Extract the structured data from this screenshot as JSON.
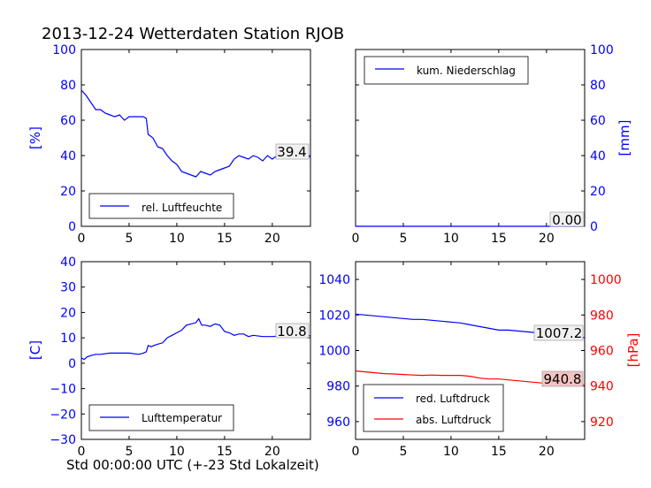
{
  "figure": {
    "title": "2013-12-24 Wetterdaten Station RJOB",
    "xlabel": "Std 00:00:00 UTC (+-23 Std Lokalzeit)"
  },
  "colors": {
    "primary": "#0000ff",
    "secondary": "#ff0000",
    "annotation_highlight": "#f4c2c2",
    "annotation_plain": "#f0f0f0"
  },
  "chart_data": [
    {
      "id": "humidity",
      "type": "line",
      "xlim": [
        0,
        24
      ],
      "xticks": [
        "0",
        "5",
        "10",
        "15",
        "20"
      ],
      "ylim": [
        0,
        100
      ],
      "yticks": [
        "0",
        "20",
        "40",
        "60",
        "80",
        "100"
      ],
      "ylabel": "[%]",
      "legend": {
        "position": "lower-left",
        "entries": [
          "rel. Luftfeuchte"
        ]
      },
      "annotation": "39.4",
      "series": [
        {
          "name": "rel. Luftfeuchte",
          "color": "#0000ff",
          "x": [
            0,
            0.5,
            1,
            1.5,
            2,
            2.5,
            3,
            3.5,
            4,
            4.5,
            5,
            5.5,
            6,
            6.5,
            6.8,
            7,
            7.5,
            8,
            8.5,
            9,
            9.5,
            10,
            10.5,
            11,
            11.5,
            12,
            12.5,
            13,
            13.5,
            14,
            14.5,
            15,
            15.5,
            16,
            16.5,
            17,
            17.5,
            18,
            18.5,
            19,
            19.5,
            20,
            20.5,
            21,
            21.5,
            22,
            22.5,
            23,
            23.5,
            24
          ],
          "y": [
            77,
            74,
            70,
            66,
            66,
            64,
            63,
            62,
            63,
            60,
            62,
            62,
            62,
            62,
            61,
            52,
            50,
            45,
            44,
            40,
            37,
            35,
            31,
            30,
            29,
            28,
            31,
            30,
            29,
            31,
            32,
            33,
            34,
            38,
            40,
            39,
            38,
            40,
            39,
            37,
            40,
            38,
            40,
            39,
            41,
            39,
            40,
            41,
            39,
            39.4
          ]
        }
      ]
    },
    {
      "id": "precipitation",
      "type": "line",
      "xlim": [
        0,
        24
      ],
      "xticks": [
        "0",
        "5",
        "10",
        "15",
        "20"
      ],
      "ylim": [
        0,
        100
      ],
      "yticks": [
        "0",
        "20",
        "40",
        "60",
        "80",
        "100"
      ],
      "ylabel": "[mm]",
      "legend": {
        "position": "upper-left",
        "entries": [
          "kum. Niederschlag"
        ]
      },
      "annotation": "0.00",
      "series": [
        {
          "name": "kum. Niederschlag",
          "color": "#0000ff",
          "x": [
            0,
            24
          ],
          "y": [
            0,
            0
          ]
        }
      ]
    },
    {
      "id": "temperature",
      "type": "line",
      "xlim": [
        0,
        24
      ],
      "xticks": [
        "0",
        "5",
        "10",
        "15",
        "20"
      ],
      "ylim": [
        -30,
        40
      ],
      "yticks": [
        "−30",
        "−20",
        "−10",
        "0",
        "10",
        "20",
        "30",
        "40"
      ],
      "ylabel": "[C]",
      "legend": {
        "position": "lower-left",
        "entries": [
          "Lufttemperatur"
        ]
      },
      "annotation": "10.8",
      "series": [
        {
          "name": "Lufttemperatur",
          "color": "#0000ff",
          "x": [
            0,
            0.3,
            0.6,
            1,
            1.5,
            2,
            3,
            4,
            5,
            6,
            6.5,
            6.8,
            7,
            7.3,
            7.6,
            8,
            8.5,
            9,
            9.5,
            10,
            10.5,
            11,
            11.5,
            12,
            12.3,
            12.6,
            13,
            13.5,
            14,
            14.5,
            15,
            15.5,
            16,
            16.5,
            17,
            17.5,
            18,
            19,
            20,
            21,
            22,
            23,
            24
          ],
          "y": [
            2,
            1.5,
            2.5,
            3,
            3.5,
            3.5,
            4,
            4,
            4,
            3.5,
            4,
            4.5,
            7,
            6.5,
            7,
            7.5,
            8,
            10,
            11,
            12,
            13,
            15,
            15.5,
            16,
            17.5,
            15,
            15,
            14.5,
            15.5,
            15,
            12.5,
            12,
            11,
            11.5,
            11.5,
            10.5,
            11,
            10.5,
            10.5,
            10.8,
            10.5,
            10.8,
            10.8
          ]
        }
      ]
    },
    {
      "id": "pressure",
      "type": "line",
      "xlim": [
        0,
        24
      ],
      "xticks": [
        "0",
        "5",
        "10",
        "15",
        "20"
      ],
      "ylim": [
        950,
        1050
      ],
      "yticks": [
        "960",
        "980",
        "1000",
        "1020",
        "1040"
      ],
      "y2lim": [
        910,
        1010
      ],
      "y2ticks": [
        "920",
        "940",
        "960",
        "980",
        "1000"
      ],
      "y2label": "[hPa]",
      "legend": {
        "position": "lower-left",
        "entries": [
          "red. Luftdruck",
          "abs. Luftdruck"
        ]
      },
      "annotations": [
        "1007.2",
        "940.8"
      ],
      "series": [
        {
          "name": "red. Luftdruck",
          "color": "#0000ff",
          "axis": "left",
          "x": [
            0,
            1,
            2,
            3,
            4,
            5,
            6,
            7,
            8,
            9,
            10,
            11,
            12,
            13,
            14,
            15,
            16,
            17,
            18,
            19,
            20,
            21,
            22,
            23,
            24
          ],
          "y": [
            1020.5,
            1020,
            1019.5,
            1019,
            1018.5,
            1018,
            1017.5,
            1017.5,
            1017,
            1016.5,
            1016,
            1015.5,
            1014.5,
            1013.5,
            1012.5,
            1011.5,
            1011.5,
            1011,
            1010.5,
            1010,
            1009.5,
            1009,
            1008.5,
            1008,
            1007.2
          ]
        },
        {
          "name": "abs. Luftdruck",
          "color": "#ff0000",
          "axis": "right",
          "x": [
            0,
            1,
            2,
            3,
            4,
            5,
            6,
            7,
            8,
            9,
            10,
            11,
            12,
            13,
            14,
            15,
            16,
            17,
            18,
            19,
            20,
            21,
            22,
            23,
            24
          ],
          "y": [
            948.5,
            948,
            947.5,
            947,
            946.8,
            946.5,
            946.2,
            946,
            946.2,
            946,
            946,
            946,
            945.5,
            944.5,
            944,
            944,
            943.5,
            943,
            942.5,
            942,
            941.5,
            941.5,
            941,
            940.8,
            940.8
          ]
        }
      ]
    }
  ]
}
